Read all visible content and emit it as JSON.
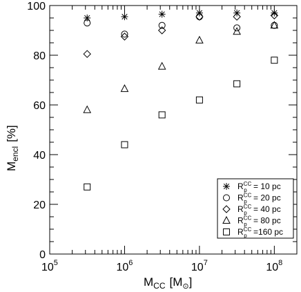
{
  "chart_data": {
    "type": "scatter",
    "xscale": "log",
    "xlim": [
      100000,
      200000000
    ],
    "ylim": [
      0,
      100
    ],
    "xlabel_main": "M",
    "xlabel_sub": "CC",
    "xlabel_unit_open": "[M",
    "xlabel_unit_close": "]",
    "ylabel_main": "M",
    "ylabel_sub": "encl",
    "ylabel_unit": "[%]",
    "x_ticks": [
      {
        "value": 100000,
        "base": "10",
        "exp": "5"
      },
      {
        "value": 1000000,
        "base": "10",
        "exp": "6"
      },
      {
        "value": 10000000,
        "base": "10",
        "exp": "7"
      },
      {
        "value": 100000000,
        "base": "10",
        "exp": "8"
      }
    ],
    "y_ticks": [
      "0",
      "20",
      "40",
      "60",
      "80",
      "100"
    ],
    "x": [
      316228,
      1000000,
      3162278,
      10000000,
      31622777,
      100000000
    ],
    "series": [
      {
        "name": "R_p^CC = 10 pc",
        "marker": "asterisk",
        "values": [
          95,
          95.5,
          96.5,
          97,
          97,
          97
        ]
      },
      {
        "name": "R_p^CC = 20 pc",
        "marker": "circle",
        "values": [
          93,
          88.5,
          92,
          95.5,
          91,
          92
        ]
      },
      {
        "name": "R_p^CC = 40 pc",
        "marker": "diamond",
        "values": [
          80.5,
          87.5,
          90,
          95.5,
          95.5,
          96
        ]
      },
      {
        "name": "R_p^CC = 80 pc",
        "marker": "triangle",
        "values": [
          58,
          66.5,
          75.5,
          86,
          89.5,
          92
        ]
      },
      {
        "name": "R_p^CC =160 pc",
        "marker": "square",
        "values": [
          27,
          44,
          56,
          62,
          68.5,
          78
        ]
      }
    ],
    "legend": {
      "placement": "bottom-right",
      "entries": [
        {
          "symbol": "R",
          "sup": "CC",
          "sub": "p",
          "text": " = 10 pc"
        },
        {
          "symbol": "R",
          "sup": "CC",
          "sub": "p",
          "text": " = 20 pc"
        },
        {
          "symbol": "R",
          "sup": "CC",
          "sub": "p",
          "text": " = 40 pc"
        },
        {
          "symbol": "R",
          "sup": "CC",
          "sub": "p",
          "text": " = 80 pc"
        },
        {
          "symbol": "R",
          "sup": "CC",
          "sub": "p",
          "text": " =160 pc"
        }
      ]
    },
    "grid": false
  }
}
